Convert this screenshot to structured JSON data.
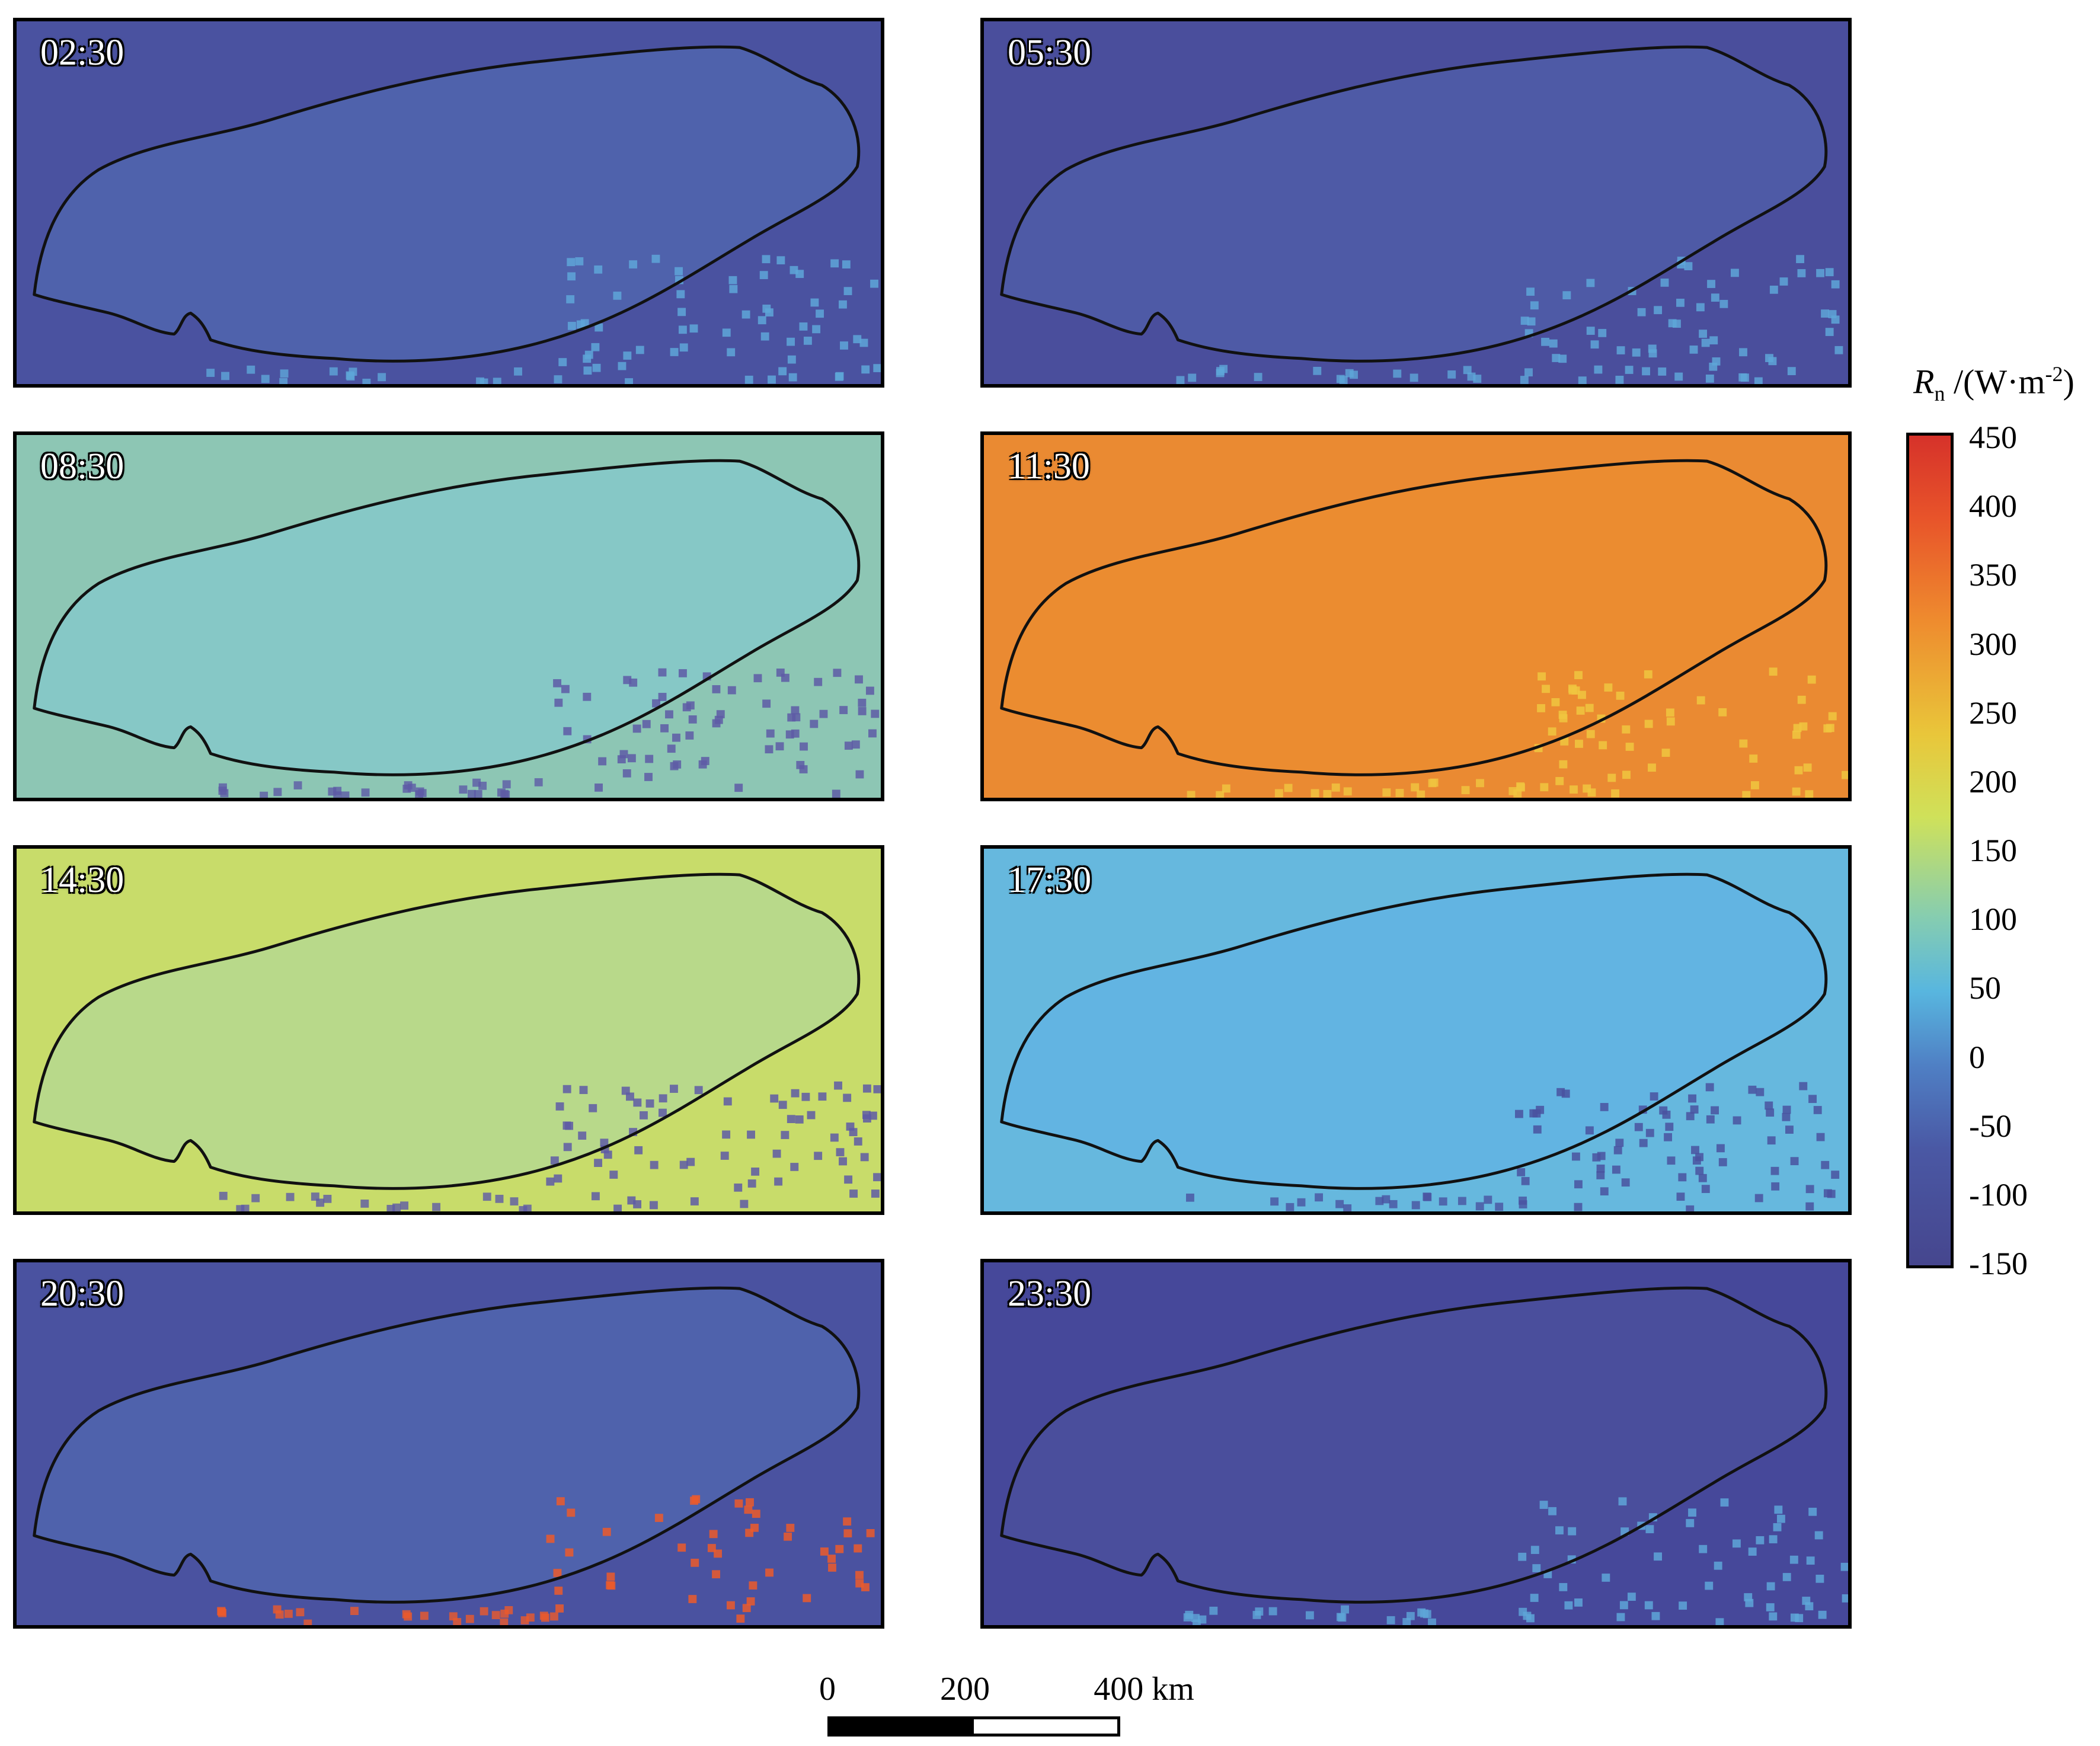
{
  "panels": [
    {
      "time": "02:30",
      "colors": {
        "bg": "#4a52a0",
        "interior": "#4f62ac",
        "accent": "#5ea6d8"
      }
    },
    {
      "time": "05:30",
      "colors": {
        "bg": "#4a4e9c",
        "interior": "#4e5aa6",
        "accent": "#5ea6d8"
      }
    },
    {
      "time": "08:30",
      "colors": {
        "bg": "#8dc6b4",
        "interior": "#86c8c6",
        "accent": "#5e5aa6"
      }
    },
    {
      "time": "11:30",
      "colors": {
        "bg": "#ea8a32",
        "interior": "#eb8c30",
        "accent": "#f0c640"
      }
    },
    {
      "time": "14:30",
      "colors": {
        "bg": "#c8dc6a",
        "interior": "#b8d98a",
        "accent": "#5e5aa6"
      }
    },
    {
      "time": "17:30",
      "colors": {
        "bg": "#66b8de",
        "interior": "#62b4e2",
        "accent": "#4a52a0"
      }
    },
    {
      "time": "20:30",
      "colors": {
        "bg": "#4a52a0",
        "interior": "#4f62ac",
        "accent": "#ec5a2a"
      }
    },
    {
      "time": "23:30",
      "colors": {
        "bg": "#46489a",
        "interior": "#4a4e9c",
        "accent": "#5ea6d8"
      }
    }
  ],
  "legend": {
    "title_symbol": "R",
    "title_subscript": "n",
    "title_unit_open": " /(W·m",
    "title_unit_sup": "-2",
    "title_unit_close": ")",
    "ticks": [
      "450",
      "400",
      "350",
      "300",
      "250",
      "200",
      "150",
      "100",
      "50",
      "0",
      "-50",
      "-100",
      "-150"
    ],
    "min": -150,
    "max": 450
  },
  "scale_bar": {
    "labels": [
      "0",
      "200",
      "400 km"
    ]
  }
}
